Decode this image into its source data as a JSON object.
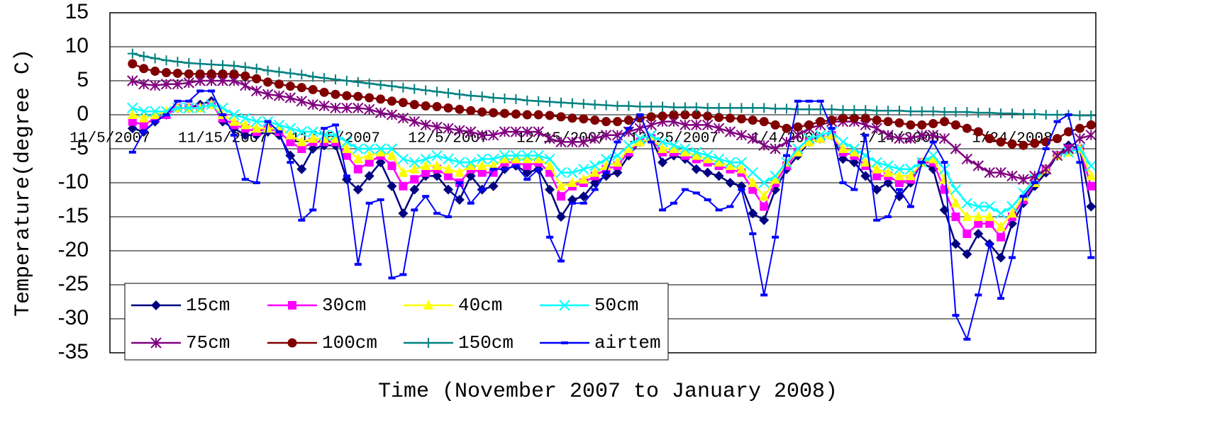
{
  "chart_data": {
    "type": "line",
    "x_label": "Time (November 2007 to January 2008)",
    "y_label": "Temperature(degree C)",
    "ylim": [
      -35,
      15
    ],
    "yticks": [
      -35,
      -30,
      -25,
      -20,
      -15,
      -10,
      -5,
      0,
      5,
      10,
      15
    ],
    "grid": true,
    "categories": [
      "11/5/2007",
      null,
      null,
      null,
      null,
      null,
      null,
      null,
      null,
      null,
      "11/15/2007",
      null,
      null,
      null,
      null,
      null,
      null,
      null,
      null,
      null,
      "11/25/2007",
      null,
      null,
      null,
      null,
      null,
      null,
      null,
      null,
      null,
      "12/5/2007",
      null,
      null,
      null,
      null,
      null,
      null,
      null,
      null,
      null,
      "12/15/2007",
      null,
      null,
      null,
      null,
      null,
      null,
      null,
      null,
      null,
      "12/25/2007",
      null,
      null,
      null,
      null,
      null,
      null,
      null,
      null,
      null,
      "1/4/2008",
      null,
      null,
      null,
      null,
      null,
      null,
      null,
      null,
      null,
      "1/14/2008",
      null,
      null,
      null,
      null,
      null,
      null,
      null,
      null,
      null,
      "1/24/2008",
      null,
      null,
      null,
      null,
      null,
      null,
      null
    ],
    "series": [
      {
        "name": "15cm",
        "color": "#000080",
        "marker": "diamond",
        "values": [
          null,
          null,
          -2,
          -2.5,
          -1,
          0,
          1,
          1,
          1.5,
          2,
          -1,
          -2,
          -3,
          -3,
          -2.5,
          -3,
          -6,
          -8,
          -5,
          -4.5,
          -4.5,
          -9.5,
          -11,
          -9,
          -7,
          -10.5,
          -14.5,
          -11,
          -9,
          -9,
          -11,
          -12.5,
          -9,
          -11,
          -10.5,
          -8,
          -7.5,
          -8.5,
          -8,
          -11,
          -15,
          -12.5,
          -12,
          -10,
          -9,
          -8.5,
          -6,
          -4,
          -3.5,
          -7,
          -6,
          -6.5,
          -8,
          -8.5,
          -9,
          -10,
          -10.5,
          -14.5,
          -15.5,
          -11,
          -8,
          -6,
          -4,
          -3.5,
          -3,
          -6.5,
          -7,
          -9,
          -11,
          -10,
          -12,
          -10,
          -7,
          -8,
          -14,
          -19,
          -20.5,
          -17.5,
          -19,
          -21,
          -16,
          -13,
          -10.5,
          -8.5,
          -6,
          -4.5,
          -5,
          -13.5
        ]
      },
      {
        "name": "30cm",
        "color": "#ff00ff",
        "marker": "square",
        "values": [
          null,
          null,
          -1,
          -1.5,
          -0.5,
          0,
          1,
          1,
          1,
          1.5,
          -0.5,
          -1.5,
          -2,
          -2.5,
          -2,
          -2.5,
          -4,
          -5,
          -4,
          -4,
          -4,
          -6,
          -8,
          -7,
          -6,
          -7.5,
          -10.5,
          -9.5,
          -8.5,
          -8,
          -9,
          -10,
          -8,
          -8.5,
          -8.5,
          -7,
          -7,
          -7.5,
          -7,
          -8.5,
          -12,
          -10.5,
          -10,
          -9,
          -8,
          -7.5,
          -5.5,
          -4,
          -3.5,
          -5.5,
          -5.5,
          -6,
          -6.5,
          -7,
          -7.5,
          -8,
          -8.5,
          -11,
          -13.5,
          -10,
          -7.5,
          -5.5,
          -4,
          -3.5,
          -3,
          -5.5,
          -6,
          -7.5,
          -9,
          -9,
          -10,
          -9.5,
          -7,
          -7,
          -11,
          -15,
          -17.5,
          -16,
          -16,
          -18,
          -15,
          -12.5,
          -10,
          -8,
          -6,
          -5,
          -5,
          -10.5
        ]
      },
      {
        "name": "40cm",
        "color": "#ffff00",
        "marker": "triangle",
        "values": [
          null,
          null,
          0,
          -0.5,
          0,
          0.5,
          1,
          1,
          1,
          1.5,
          0,
          -1,
          -1.5,
          -2,
          -2,
          -2,
          -3,
          -4,
          -3.5,
          -3.5,
          -3.5,
          -5,
          -6.5,
          -6,
          -5.5,
          -6,
          -8.5,
          -8,
          -7.5,
          -7.5,
          -8,
          -8.5,
          -7.5,
          -7.5,
          -7.5,
          -6.5,
          -6.5,
          -6.5,
          -6.5,
          -7.5,
          -10.5,
          -10,
          -9.5,
          -8.5,
          -7.5,
          -7,
          -5,
          -4,
          -3.5,
          -5,
          -5,
          -5.5,
          -6,
          -6.5,
          -7,
          -7.5,
          -8,
          -10,
          -12,
          -9.5,
          -7,
          -5.5,
          -4,
          -3.5,
          -3,
          -5,
          -5.5,
          -7,
          -8,
          -8.5,
          -9,
          -9,
          -7,
          -6.5,
          -9.5,
          -13,
          -15,
          -15,
          -15,
          -16.5,
          -14.5,
          -12,
          -10,
          -8,
          -6,
          -5.5,
          -5,
          -9
        ]
      },
      {
        "name": "50cm",
        "color": "#00ffff",
        "marker": "x",
        "values": [
          null,
          null,
          1,
          0.5,
          0.5,
          0.5,
          1,
          1,
          1,
          1.5,
          1,
          0,
          -0.5,
          -1,
          -1,
          -1.5,
          -2,
          -2.5,
          -2.5,
          -3,
          -3,
          -4,
          -5,
          -5,
          -5,
          -5,
          -6.5,
          -7,
          -6.5,
          -6,
          -6.5,
          -7,
          -7,
          -6.5,
          -6.5,
          -6,
          -6,
          -6,
          -6,
          -6.5,
          -8.5,
          -8.5,
          -8,
          -7.5,
          -6.5,
          -6,
          -4.5,
          -3.5,
          -3,
          -4,
          -4.5,
          -5,
          -5.5,
          -6,
          -6.5,
          -7,
          -7,
          -8.5,
          -10,
          -9,
          -7,
          -5,
          -3.5,
          -3,
          -2.5,
          -4,
          -5,
          -6,
          -7,
          -7.5,
          -8,
          -8,
          -7,
          -6,
          -8,
          -11,
          -13,
          -13.5,
          -13.5,
          -14.5,
          -13.5,
          -11.5,
          -9.5,
          -8,
          -6,
          -5.5,
          -5,
          -7.5
        ]
      },
      {
        "name": "75cm",
        "color": "#800080",
        "marker": "star",
        "values": [
          null,
          null,
          5,
          4.5,
          4.3,
          4.5,
          4.5,
          4.7,
          5,
          5,
          5,
          5,
          4.3,
          3.5,
          3,
          2.8,
          2.5,
          2,
          1.5,
          1.3,
          1,
          1,
          1,
          0.8,
          0.3,
          0,
          -0.5,
          -1,
          -1.5,
          -1.8,
          -2,
          -2.3,
          -2.5,
          -3,
          -3,
          -2.5,
          -2.5,
          -2.5,
          -2.5,
          -3.5,
          -4,
          -4,
          -4,
          -3.5,
          -3,
          -3,
          -2.5,
          -2,
          -1.5,
          -1,
          -1,
          -1.5,
          -1.5,
          -1.5,
          -2,
          -2.5,
          -3,
          -3.5,
          -4.5,
          -5,
          -4,
          -3,
          -2,
          -1.5,
          -1,
          -1,
          -1,
          -1.5,
          -2,
          -3,
          -3.5,
          -3.5,
          -3,
          -3,
          -3.5,
          -5,
          -6.5,
          -7.5,
          -8.5,
          -8.5,
          -9,
          -9.5,
          -9,
          -8,
          -6,
          -5,
          -3.5,
          -3
        ]
      },
      {
        "name": "100cm",
        "color": "#800000",
        "marker": "circle",
        "values": [
          null,
          null,
          7.5,
          6.8,
          6.4,
          6.2,
          6.1,
          6,
          6,
          6,
          6,
          6,
          5.7,
          5.3,
          4.8,
          4.5,
          4.2,
          4,
          3.7,
          3.3,
          3,
          2.8,
          2.7,
          2.5,
          2.3,
          2,
          1.8,
          1.5,
          1.3,
          1.2,
          1,
          0.8,
          0.6,
          0.4,
          0.3,
          0.2,
          0.1,
          0,
          0,
          -0.1,
          -0.3,
          -0.5,
          -0.6,
          -0.8,
          -1,
          -1,
          -0.8,
          -0.5,
          -0.3,
          -0.2,
          0,
          0,
          0,
          -0.2,
          -0.4,
          -0.5,
          -0.6,
          -0.8,
          -1,
          -1.5,
          -2,
          -1.8,
          -1.5,
          -1,
          -0.8,
          -0.5,
          -0.5,
          -0.5,
          -0.8,
          -1,
          -1.2,
          -1.5,
          -1.5,
          -1.3,
          -1,
          -1.5,
          -2,
          -2.5,
          -3.5,
          -4,
          -4.3,
          -4.5,
          -4.2,
          -4,
          -3.5,
          -2.5,
          -2,
          -1.5
        ]
      },
      {
        "name": "150cm",
        "color": "#008080",
        "marker": "plus",
        "values": [
          null,
          null,
          9,
          8.6,
          8.3,
          8,
          7.8,
          7.6,
          7.5,
          7.4,
          7.3,
          7.2,
          7,
          6.8,
          6.5,
          6.3,
          6.1,
          5.9,
          5.6,
          5.4,
          5.2,
          5,
          4.8,
          4.6,
          4.4,
          4.2,
          4,
          3.8,
          3.6,
          3.4,
          3.2,
          3,
          2.8,
          2.7,
          2.5,
          2.4,
          2.3,
          2.1,
          2,
          1.9,
          1.8,
          1.7,
          1.6,
          1.5,
          1.4,
          1.3,
          1.3,
          1.2,
          1.2,
          1.2,
          1.1,
          1.1,
          1.1,
          1,
          1,
          1,
          1,
          1,
          1,
          0.9,
          0.9,
          0.8,
          0.8,
          0.8,
          0.8,
          0.7,
          0.7,
          0.7,
          0.6,
          0.6,
          0.6,
          0.5,
          0.5,
          0.5,
          0.4,
          0.4,
          0.4,
          0.3,
          0.3,
          0.2,
          0.2,
          0.1,
          0.1,
          0,
          0,
          0,
          -0.1,
          -0.1
        ]
      },
      {
        "name": "airtem",
        "color": "#0000ff",
        "marker": "dash",
        "values": [
          null,
          null,
          -5.5,
          -2.5,
          -1,
          0,
          2,
          2,
          3.5,
          3.5,
          0,
          -3,
          -9.5,
          -10,
          -1,
          -2.5,
          -7,
          -15.5,
          -14,
          -2,
          -1.5,
          -9,
          -22,
          -13,
          -12.5,
          -24,
          -23.5,
          -14,
          -12,
          -14.5,
          -15,
          -10,
          -13,
          -11,
          -8,
          -8,
          -7.5,
          -9.5,
          -8,
          -18,
          -21.5,
          -13,
          -13,
          -11,
          -8.5,
          -4,
          -2,
          0,
          -4,
          -14,
          -13,
          -11,
          -11.5,
          -12.5,
          -14,
          -13.5,
          -11,
          -17.5,
          -26.5,
          -18,
          -6,
          2,
          2,
          2,
          -2,
          -10,
          -11,
          -3,
          -15.5,
          -15,
          -11,
          -13.5,
          -7,
          -4,
          -7,
          -29.5,
          -33,
          -26.5,
          -19,
          -27,
          -21,
          -12,
          -10,
          -5,
          -1,
          0,
          -7,
          -21
        ]
      }
    ]
  }
}
